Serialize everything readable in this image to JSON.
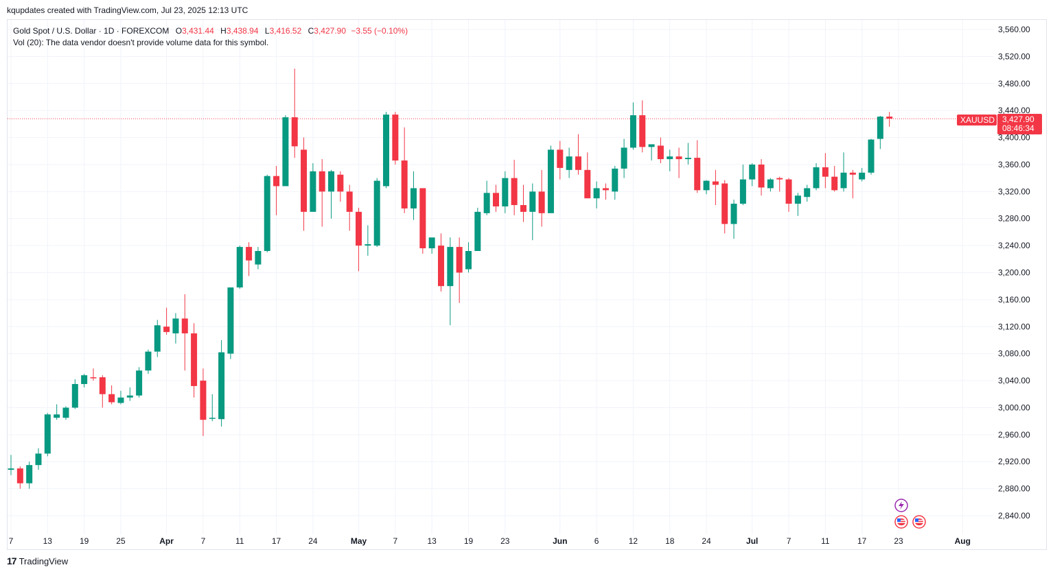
{
  "credit": "kqupdates created with TradingView.com, Jul 23, 2025 12:13 UTC",
  "legend": {
    "symbol": "Gold Spot / U.S. Dollar · 1D · FOREXCOM",
    "o_label": "O",
    "o_value": "3,431.44",
    "h_label": "H",
    "h_value": "3,438.94",
    "l_label": "L",
    "l_value": "3,416.52",
    "c_label": "C",
    "c_value": "3,427.90",
    "change": "−3.55 (−0.10%)",
    "vol_line": "Vol (20): The data vendor doesn't provide volume data for this symbol."
  },
  "price_tag": {
    "ticker": "XAUUSD",
    "price": "3,427.90",
    "countdown": "08:46:34"
  },
  "footer": {
    "brand": "TradingView",
    "logo_glyph": "17"
  },
  "colors": {
    "up": "#089981",
    "down": "#f23645",
    "grid": "#f0f3fa",
    "price_line": "#f23645"
  },
  "chart_data": {
    "type": "candlestick",
    "symbol": "XAUUSD",
    "timeframe": "1D",
    "ylim": [
      2800,
      3580
    ],
    "y_ticks": [
      2840,
      2880,
      2920,
      2960,
      3000,
      3040,
      3080,
      3120,
      3160,
      3200,
      3240,
      3280,
      3320,
      3360,
      3400,
      3440,
      3480,
      3520,
      3560
    ],
    "y_tick_labels": [
      "2,840.00",
      "2,880.00",
      "2,920.00",
      "2,960.00",
      "3,000.00",
      "3,040.00",
      "3,080.00",
      "3,120.00",
      "3,160.00",
      "3,200.00",
      "3,240.00",
      "3,280.00",
      "3,320.00",
      "3,360.00",
      "3,400.00",
      "3,440.00",
      "3,480.00",
      "3,520.00",
      "3,560.00"
    ],
    "x_tick_labels": [
      {
        "label": "7",
        "idx": 0,
        "bold": false
      },
      {
        "label": "13",
        "idx": 4,
        "bold": false
      },
      {
        "label": "19",
        "idx": 8,
        "bold": false
      },
      {
        "label": "25",
        "idx": 12,
        "bold": false
      },
      {
        "label": "Apr",
        "idx": 17,
        "bold": true
      },
      {
        "label": "7",
        "idx": 21,
        "bold": false
      },
      {
        "label": "11",
        "idx": 25,
        "bold": false
      },
      {
        "label": "17",
        "idx": 29,
        "bold": false
      },
      {
        "label": "24",
        "idx": 33,
        "bold": false
      },
      {
        "label": "May",
        "idx": 38,
        "bold": true
      },
      {
        "label": "7",
        "idx": 42,
        "bold": false
      },
      {
        "label": "13",
        "idx": 46,
        "bold": false
      },
      {
        "label": "19",
        "idx": 50,
        "bold": false
      },
      {
        "label": "23",
        "idx": 54,
        "bold": false
      },
      {
        "label": "Jun",
        "idx": 60,
        "bold": true
      },
      {
        "label": "6",
        "idx": 64,
        "bold": false
      },
      {
        "label": "12",
        "idx": 68,
        "bold": false
      },
      {
        "label": "18",
        "idx": 72,
        "bold": false
      },
      {
        "label": "24",
        "idx": 76,
        "bold": false
      },
      {
        "label": "Jul",
        "idx": 81,
        "bold": true
      },
      {
        "label": "7",
        "idx": 85,
        "bold": false
      },
      {
        "label": "11",
        "idx": 89,
        "bold": false
      },
      {
        "label": "17",
        "idx": 93,
        "bold": false
      },
      {
        "label": "23",
        "idx": 97,
        "bold": false
      },
      {
        "label": "Aug",
        "idx": 104,
        "bold": true
      }
    ],
    "last_price": 3427.9,
    "candles": [
      [
        2908,
        2930,
        2900,
        2910
      ],
      [
        2910,
        2913,
        2880,
        2888
      ],
      [
        2888,
        2920,
        2880,
        2915
      ],
      [
        2915,
        2940,
        2908,
        2932
      ],
      [
        2932,
        2992,
        2928,
        2990
      ],
      [
        2985,
        3005,
        2982,
        2990
      ],
      [
        2985,
        3002,
        2982,
        3000
      ],
      [
        3000,
        3042,
        2998,
        3035
      ],
      [
        3035,
        3050,
        3030,
        3048
      ],
      [
        3045,
        3058,
        3040,
        3044
      ],
      [
        3045,
        3048,
        3000,
        3020
      ],
      [
        3020,
        3033,
        3005,
        3008
      ],
      [
        3007,
        3025,
        3005,
        3015
      ],
      [
        3015,
        3030,
        3010,
        3018
      ],
      [
        3018,
        3060,
        3015,
        3055
      ],
      [
        3055,
        3086,
        3050,
        3083
      ],
      [
        3083,
        3130,
        3075,
        3122
      ],
      [
        3120,
        3148,
        3108,
        3112
      ],
      [
        3110,
        3140,
        3095,
        3132
      ],
      [
        3132,
        3168,
        3055,
        3110
      ],
      [
        3110,
        3125,
        3015,
        3032
      ],
      [
        3040,
        3058,
        2958,
        2982
      ],
      [
        2985,
        3020,
        2980,
        2985
      ],
      [
        2983,
        3100,
        2972,
        3082
      ],
      [
        3080,
        3175,
        3072,
        3178
      ],
      [
        3178,
        3240,
        3176,
        3238
      ],
      [
        3238,
        3245,
        3195,
        3218
      ],
      [
        3212,
        3238,
        3205,
        3232
      ],
      [
        3232,
        3345,
        3230,
        3343
      ],
      [
        3343,
        3358,
        3285,
        3328
      ],
      [
        3328,
        3433,
        3328,
        3430
      ],
      [
        3430,
        3502,
        3370,
        3387
      ],
      [
        3382,
        3400,
        3262,
        3290
      ],
      [
        3290,
        3362,
        3290,
        3350
      ],
      [
        3350,
        3368,
        3268,
        3320
      ],
      [
        3320,
        3352,
        3280,
        3350
      ],
      [
        3345,
        3350,
        3305,
        3320
      ],
      [
        3320,
        3330,
        3262,
        3290
      ],
      [
        3290,
        3296,
        3202,
        3240
      ],
      [
        3240,
        3270,
        3225,
        3242
      ],
      [
        3240,
        3340,
        3238,
        3336
      ],
      [
        3328,
        3438,
        3325,
        3434
      ],
      [
        3434,
        3438,
        3360,
        3366
      ],
      [
        3366,
        3415,
        3288,
        3295
      ],
      [
        3295,
        3350,
        3278,
        3325
      ],
      [
        3325,
        3325,
        3228,
        3236
      ],
      [
        3236,
        3252,
        3228,
        3252
      ],
      [
        3240,
        3258,
        3172,
        3180
      ],
      [
        3180,
        3252,
        3122,
        3238
      ],
      [
        3238,
        3252,
        3155,
        3200
      ],
      [
        3205,
        3245,
        3200,
        3232
      ],
      [
        3232,
        3296,
        3232,
        3290
      ],
      [
        3288,
        3336,
        3285,
        3318
      ],
      [
        3318,
        3330,
        3290,
        3298
      ],
      [
        3298,
        3350,
        3288,
        3340
      ],
      [
        3340,
        3367,
        3285,
        3300
      ],
      [
        3300,
        3330,
        3275,
        3290
      ],
      [
        3290,
        3332,
        3248,
        3320
      ],
      [
        3320,
        3352,
        3268,
        3288
      ],
      [
        3288,
        3388,
        3290,
        3382
      ],
      [
        3382,
        3395,
        3338,
        3355
      ],
      [
        3352,
        3385,
        3340,
        3372
      ],
      [
        3372,
        3405,
        3345,
        3352
      ],
      [
        3352,
        3378,
        3310,
        3310
      ],
      [
        3310,
        3335,
        3295,
        3325
      ],
      [
        3325,
        3332,
        3308,
        3322
      ],
      [
        3320,
        3358,
        3308,
        3354
      ],
      [
        3354,
        3398,
        3340,
        3385
      ],
      [
        3385,
        3452,
        3382,
        3433
      ],
      [
        3433,
        3455,
        3378,
        3386
      ],
      [
        3386,
        3390,
        3366,
        3390
      ],
      [
        3388,
        3400,
        3362,
        3368
      ],
      [
        3368,
        3382,
        3350,
        3372
      ],
      [
        3372,
        3385,
        3340,
        3368
      ],
      [
        3368,
        3392,
        3360,
        3370
      ],
      [
        3370,
        3396,
        3318,
        3322
      ],
      [
        3322,
        3337,
        3316,
        3336
      ],
      [
        3335,
        3352,
        3300,
        3330
      ],
      [
        3332,
        3337,
        3258,
        3272
      ],
      [
        3272,
        3308,
        3250,
        3302
      ],
      [
        3302,
        3360,
        3300,
        3338
      ],
      [
        3338,
        3362,
        3328,
        3360
      ],
      [
        3360,
        3368,
        3314,
        3326
      ],
      [
        3325,
        3340,
        3320,
        3338
      ],
      [
        3340,
        3342,
        3320,
        3338
      ],
      [
        3338,
        3340,
        3290,
        3302
      ],
      [
        3302,
        3318,
        3284,
        3314
      ],
      [
        3312,
        3330,
        3305,
        3325
      ],
      [
        3325,
        3362,
        3322,
        3356
      ],
      [
        3356,
        3377,
        3325,
        3342
      ],
      [
        3342,
        3358,
        3320,
        3322
      ],
      [
        3325,
        3378,
        3320,
        3348
      ],
      [
        3348,
        3352,
        3310,
        3345
      ],
      [
        3338,
        3355,
        3335,
        3348
      ],
      [
        3348,
        3398,
        3345,
        3397
      ],
      [
        3398,
        3432,
        3383,
        3431
      ],
      [
        3431,
        3438,
        3416,
        3428
      ]
    ]
  }
}
